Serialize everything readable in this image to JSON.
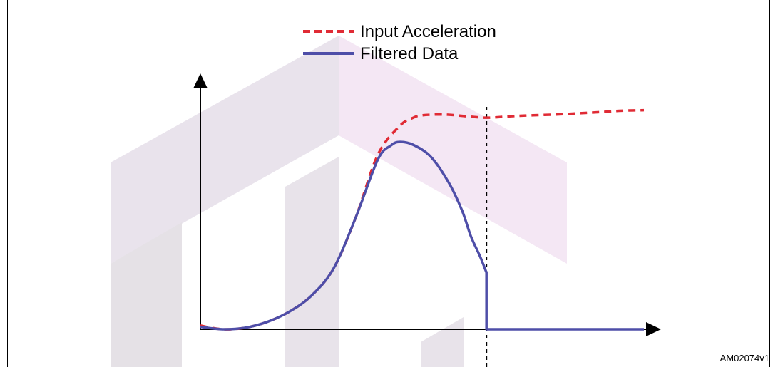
{
  "figure_id": "AM02074v1",
  "chart_data": {
    "type": "line",
    "title": "",
    "xlabel": "",
    "ylabel": "",
    "xlim": [
      0,
      100
    ],
    "ylim": [
      0,
      100
    ],
    "grid": false,
    "axis_ticks": false,
    "legend": {
      "placement": "top-center",
      "entries": [
        {
          "name": "Input Acceleration",
          "style": "dashed",
          "color": "#e02b35"
        },
        {
          "name": "Filtered Data",
          "style": "solid",
          "color": "#4e4ea8"
        }
      ]
    },
    "annotations": [
      {
        "type": "vertical-dashed-line",
        "x": 64.5,
        "color": "#000000"
      }
    ],
    "series": [
      {
        "name": "Input Acceleration",
        "style": "dashed",
        "color": "#e02b35",
        "points": [
          [
            0,
            1.5
          ],
          [
            5,
            0
          ],
          [
            10,
            0.6
          ],
          [
            15,
            3
          ],
          [
            20,
            7.2
          ],
          [
            25,
            13.8
          ],
          [
            30,
            25
          ],
          [
            35,
            46
          ],
          [
            40,
            72
          ],
          [
            45,
            84
          ],
          [
            48,
            87.3
          ],
          [
            50,
            88.3
          ],
          [
            55,
            88.6
          ],
          [
            60,
            87.9
          ],
          [
            64.5,
            87.3
          ],
          [
            70,
            87.9
          ],
          [
            75,
            88.3
          ],
          [
            80,
            88.6
          ],
          [
            85,
            89.1
          ],
          [
            90,
            89.6
          ],
          [
            95,
            90.2
          ],
          [
            100,
            90.4
          ]
        ]
      },
      {
        "name": "Filtered Data",
        "style": "solid",
        "color": "#4e4ea8",
        "points": [
          [
            0,
            1.0
          ],
          [
            5,
            0
          ],
          [
            10,
            0.6
          ],
          [
            15,
            3
          ],
          [
            20,
            7.2
          ],
          [
            25,
            13.8
          ],
          [
            30,
            25
          ],
          [
            35,
            46
          ],
          [
            40,
            70
          ],
          [
            43,
            75.9
          ],
          [
            45,
            77.3
          ],
          [
            48,
            76.1
          ],
          [
            52,
            71.1
          ],
          [
            56,
            60.5
          ],
          [
            59,
            49
          ],
          [
            61,
            38.3
          ],
          [
            63,
            30.3
          ],
          [
            64.5,
            23.4
          ],
          [
            64.5,
            0
          ],
          [
            70,
            0
          ],
          [
            80,
            0
          ],
          [
            90,
            0
          ],
          [
            100,
            0
          ]
        ]
      }
    ]
  }
}
